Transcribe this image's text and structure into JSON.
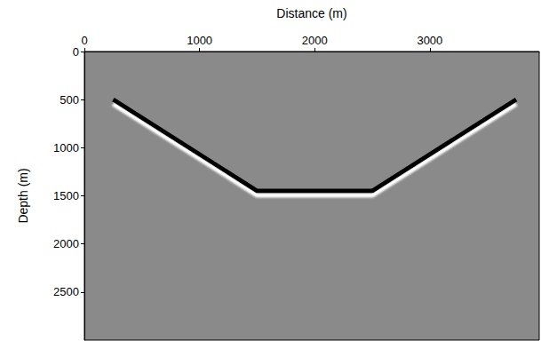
{
  "chart_data": {
    "type": "line",
    "x_label": "Distance (m)",
    "y_label": "Depth (m)",
    "x": [
      250,
      1500,
      2500,
      3750
    ],
    "values": [
      500,
      1450,
      1450,
      500
    ],
    "color": "#000000",
    "xlim": [
      0,
      3950
    ],
    "xticks": [
      0,
      1000,
      2000,
      3000
    ],
    "ylim": [
      0,
      3000
    ],
    "yticks": [
      0,
      500,
      1000,
      1500,
      2000,
      2500
    ],
    "grid": false
  }
}
